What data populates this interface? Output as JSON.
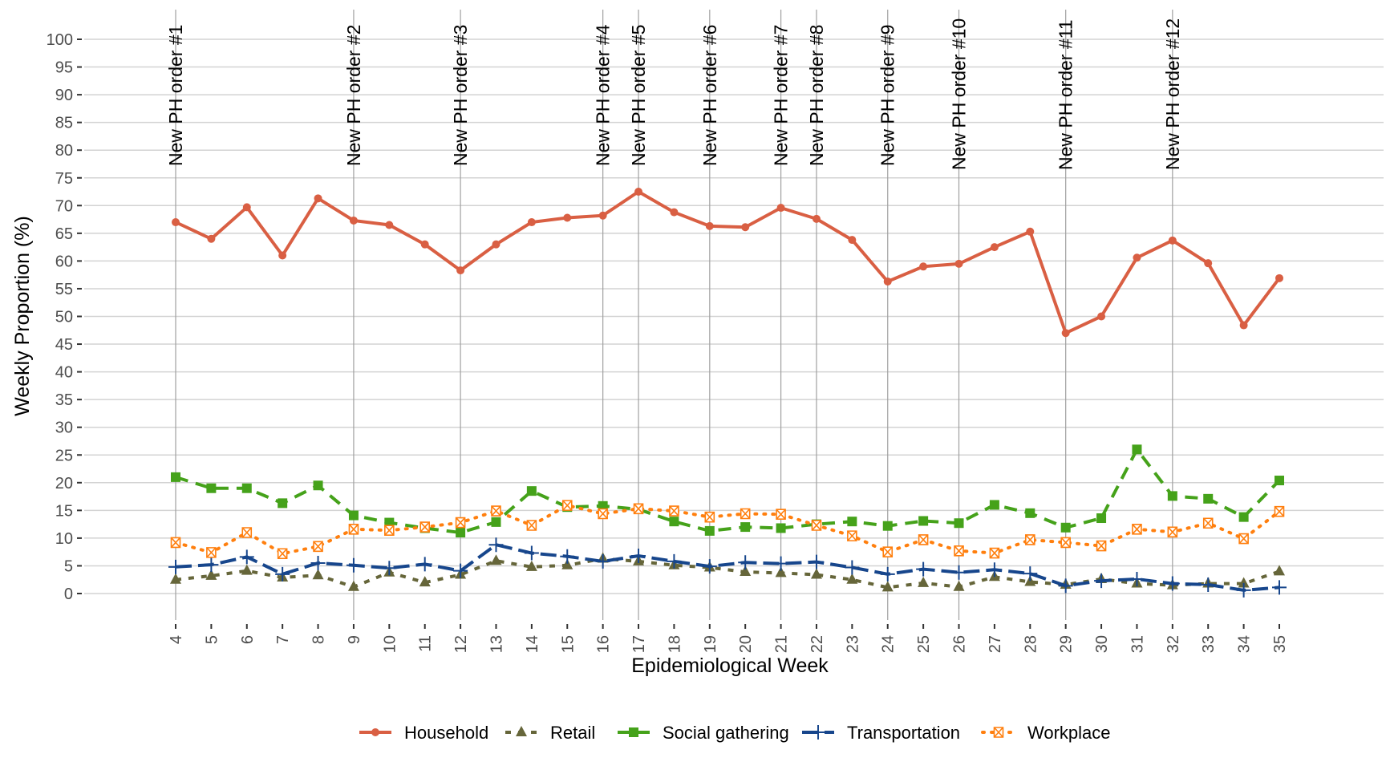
{
  "chart_data": {
    "type": "line",
    "title": "",
    "xlabel": "Epidemiological Week",
    "ylabel": "Weekly Proportion (%)",
    "ylim": [
      0,
      100
    ],
    "yticks": [
      0,
      5,
      10,
      15,
      20,
      25,
      30,
      35,
      40,
      45,
      50,
      55,
      60,
      65,
      70,
      75,
      80,
      85,
      90,
      95,
      100
    ],
    "x": [
      4,
      5,
      6,
      7,
      8,
      9,
      10,
      11,
      12,
      13,
      14,
      15,
      16,
      17,
      18,
      19,
      20,
      21,
      22,
      23,
      24,
      25,
      26,
      27,
      28,
      29,
      30,
      31,
      32,
      33,
      34,
      35
    ],
    "grid": true,
    "legend_position": "bottom",
    "series": [
      {
        "name": "Household",
        "color": "#D95F43",
        "style": "solid",
        "marker": "circle",
        "values": [
          67,
          64,
          69.7,
          61,
          71.3,
          67.3,
          66.5,
          63,
          58.3,
          63,
          67,
          67.8,
          68.2,
          72.5,
          68.8,
          66.3,
          66.1,
          69.6,
          67.6,
          63.8,
          56.3,
          59,
          59.5,
          62.5,
          65.3,
          47,
          50,
          60.6,
          63.7,
          59.6,
          48.4,
          56.9
        ]
      },
      {
        "name": "Retail",
        "color": "#66663A",
        "style": "dashed-short",
        "marker": "triangle",
        "values": [
          2.5,
          3.2,
          4.1,
          2.9,
          3.3,
          1.2,
          3.8,
          2,
          3.4,
          5.9,
          4.8,
          5.1,
          6.3,
          5.8,
          5.1,
          4.7,
          3.9,
          3.7,
          3.4,
          2.5,
          1.1,
          1.9,
          1.2,
          3,
          2.1,
          1.6,
          2.6,
          1.8,
          1.5,
          1.8,
          1.8,
          4
        ]
      },
      {
        "name": "Social gathering",
        "color": "#45A21A",
        "style": "dashed",
        "marker": "square",
        "values": [
          21,
          19,
          19,
          16.3,
          19.5,
          14.1,
          12.8,
          11.8,
          11,
          12.9,
          18.5,
          15.6,
          15.8,
          15.2,
          13,
          11.3,
          12,
          11.8,
          12.5,
          13,
          12.2,
          13.1,
          12.7,
          16,
          14.5,
          11.9,
          13.6,
          26,
          17.6,
          17.1,
          13.8,
          20.4
        ]
      },
      {
        "name": "Transportation",
        "color": "#17468C",
        "style": "longdash",
        "marker": "plus",
        "values": [
          4.8,
          5.2,
          6.6,
          3.5,
          5.5,
          5.1,
          4.6,
          5.3,
          4.1,
          8.8,
          7.3,
          6.7,
          5.8,
          6.8,
          5.8,
          4.9,
          5.6,
          5.4,
          5.7,
          4.7,
          3.5,
          4.4,
          3.8,
          4.3,
          3.6,
          1.4,
          2.3,
          2.6,
          1.8,
          1.6,
          0.6,
          1.1
        ]
      },
      {
        "name": "Workplace",
        "color": "#FF7F0E",
        "style": "dotted",
        "marker": "boxed-x",
        "values": [
          9.2,
          7.4,
          11,
          7.2,
          8.5,
          11.6,
          11.4,
          12,
          12.8,
          14.9,
          12.3,
          15.9,
          14.4,
          15.3,
          14.9,
          13.8,
          14.4,
          14.3,
          12.3,
          10.4,
          7.5,
          9.7,
          7.7,
          7.3,
          9.7,
          9.2,
          8.6,
          11.6,
          11.1,
          12.7,
          9.9,
          14.8
        ]
      }
    ],
    "annotations": [
      {
        "week": 4,
        "label": "New PH order #1"
      },
      {
        "week": 9,
        "label": "New PH order #2"
      },
      {
        "week": 12,
        "label": "New PH order #3"
      },
      {
        "week": 16,
        "label": "New PH order #4"
      },
      {
        "week": 17,
        "label": "New PH order #5"
      },
      {
        "week": 19,
        "label": "New PH order #6"
      },
      {
        "week": 21,
        "label": "New PH order #7"
      },
      {
        "week": 22,
        "label": "New PH order #8"
      },
      {
        "week": 24,
        "label": "New PH order #9"
      },
      {
        "week": 26,
        "label": "New PH order #10"
      },
      {
        "week": 29,
        "label": "New PH order #11"
      },
      {
        "week": 32,
        "label": "New PH order #12"
      }
    ]
  }
}
